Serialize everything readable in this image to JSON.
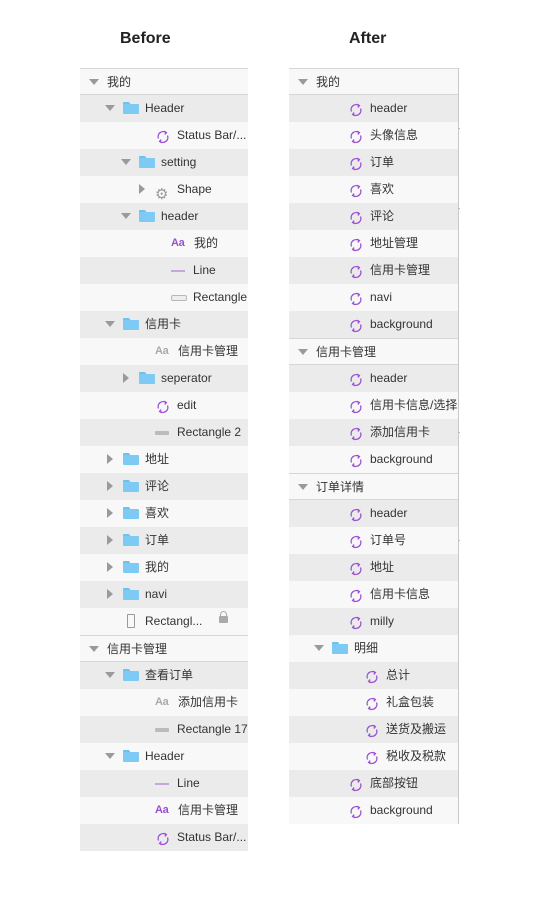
{
  "columns": {
    "before": "Before",
    "after": "After"
  },
  "before": [
    {
      "label": "我的",
      "level": 0,
      "icon": "none",
      "disc": "open",
      "bg": "plain",
      "kind": "group"
    },
    {
      "label": "Header",
      "level": 1,
      "icon": "folder",
      "disc": "open",
      "bg": "alt"
    },
    {
      "label": "Status Bar/...",
      "level": 3,
      "icon": "symbol",
      "bg": "plain"
    },
    {
      "label": "setting",
      "level": 2,
      "icon": "folder",
      "disc": "open",
      "bg": "alt"
    },
    {
      "label": "Shape",
      "level": 3,
      "icon": "gear",
      "disc": "closed",
      "bg": "plain"
    },
    {
      "label": "header",
      "level": 2,
      "icon": "folder",
      "disc": "open",
      "bg": "alt"
    },
    {
      "label": "我的",
      "level": 4,
      "icon": "text",
      "bg": "plain"
    },
    {
      "label": "Line",
      "level": 4,
      "icon": "line",
      "bg": "alt"
    },
    {
      "label": "Rectangle",
      "level": 4,
      "icon": "rect",
      "bg": "plain"
    },
    {
      "label": "信用卡",
      "level": 1,
      "icon": "folder",
      "disc": "open",
      "bg": "alt"
    },
    {
      "label": "信用卡管理",
      "level": 3,
      "icon": "text-grey",
      "bg": "plain"
    },
    {
      "label": "seperator",
      "level": 2,
      "icon": "folder",
      "disc": "closed",
      "bg": "alt"
    },
    {
      "label": "edit",
      "level": 3,
      "icon": "symbol",
      "bg": "plain"
    },
    {
      "label": "Rectangle 2",
      "level": 3,
      "icon": "bar",
      "bg": "alt"
    },
    {
      "label": "地址",
      "level": 1,
      "icon": "folder",
      "disc": "closed",
      "bg": "plain"
    },
    {
      "label": "评论",
      "level": 1,
      "icon": "folder",
      "disc": "closed",
      "bg": "alt"
    },
    {
      "label": "喜欢",
      "level": 1,
      "icon": "folder",
      "disc": "closed",
      "bg": "plain"
    },
    {
      "label": "订单",
      "level": 1,
      "icon": "folder",
      "disc": "closed",
      "bg": "alt"
    },
    {
      "label": "我的",
      "level": 1,
      "icon": "folder",
      "disc": "closed",
      "bg": "plain"
    },
    {
      "label": "navi",
      "level": 1,
      "icon": "folder",
      "disc": "closed",
      "bg": "alt"
    },
    {
      "label": "Rectangl...",
      "level": 1,
      "icon": "phone",
      "bg": "plain",
      "locked": true
    },
    {
      "label": "信用卡管理",
      "level": 0,
      "icon": "none",
      "disc": "open",
      "bg": "plain",
      "kind": "group"
    },
    {
      "label": "查看订单",
      "level": 1,
      "icon": "folder",
      "disc": "open",
      "bg": "alt"
    },
    {
      "label": "添加信用卡",
      "level": 3,
      "icon": "text-grey",
      "bg": "plain"
    },
    {
      "label": "Rectangle 17",
      "level": 3,
      "icon": "bar",
      "bg": "alt"
    },
    {
      "label": "Header",
      "level": 1,
      "icon": "folder",
      "disc": "open",
      "bg": "plain"
    },
    {
      "label": "Line",
      "level": 3,
      "icon": "line",
      "bg": "alt"
    },
    {
      "label": "信用卡管理",
      "level": 3,
      "icon": "text",
      "bg": "plain"
    },
    {
      "label": "Status Bar/...",
      "level": 3,
      "icon": "symbol",
      "bg": "alt"
    }
  ],
  "after": [
    {
      "label": "我的",
      "level": 0,
      "icon": "none",
      "disc": "open",
      "bg": "plain",
      "kind": "group"
    },
    {
      "label": "header",
      "level": 2,
      "icon": "symbol",
      "bg": "alt"
    },
    {
      "label": "头像信息",
      "level": 2,
      "icon": "symbol",
      "bg": "plain"
    },
    {
      "label": "订单",
      "level": 2,
      "icon": "symbol",
      "bg": "alt"
    },
    {
      "label": "喜欢",
      "level": 2,
      "icon": "symbol",
      "bg": "plain"
    },
    {
      "label": "评论",
      "level": 2,
      "icon": "symbol",
      "bg": "alt"
    },
    {
      "label": "地址管理",
      "level": 2,
      "icon": "symbol",
      "bg": "plain"
    },
    {
      "label": "信用卡管理",
      "level": 2,
      "icon": "symbol",
      "bg": "alt"
    },
    {
      "label": "navi",
      "level": 2,
      "icon": "symbol",
      "bg": "plain"
    },
    {
      "label": "background",
      "level": 2,
      "icon": "symbol",
      "bg": "alt"
    },
    {
      "label": "信用卡管理",
      "level": 0,
      "icon": "none",
      "disc": "open",
      "bg": "plain",
      "kind": "group"
    },
    {
      "label": "header",
      "level": 2,
      "icon": "symbol",
      "bg": "alt"
    },
    {
      "label": "信用卡信息/选择",
      "level": 2,
      "icon": "symbol",
      "bg": "plain"
    },
    {
      "label": "添加信用卡",
      "level": 2,
      "icon": "symbol",
      "bg": "alt"
    },
    {
      "label": "background",
      "level": 2,
      "icon": "symbol",
      "bg": "plain"
    },
    {
      "label": "订单详情",
      "level": 0,
      "icon": "none",
      "disc": "open",
      "bg": "plain",
      "kind": "group"
    },
    {
      "label": "header",
      "level": 2,
      "icon": "symbol",
      "bg": "alt"
    },
    {
      "label": "订单号",
      "level": 2,
      "icon": "symbol",
      "bg": "plain"
    },
    {
      "label": "地址",
      "level": 2,
      "icon": "symbol",
      "bg": "alt"
    },
    {
      "label": "信用卡信息",
      "level": 2,
      "icon": "symbol",
      "bg": "plain"
    },
    {
      "label": "milly",
      "level": 2,
      "icon": "symbol",
      "bg": "alt"
    },
    {
      "label": "明细",
      "level": 1,
      "icon": "folder",
      "disc": "open",
      "bg": "plain"
    },
    {
      "label": "总计",
      "level": 3,
      "icon": "symbol",
      "bg": "alt"
    },
    {
      "label": "礼盒包装",
      "level": 3,
      "icon": "symbol",
      "bg": "plain"
    },
    {
      "label": "送货及搬运",
      "level": 3,
      "icon": "symbol",
      "bg": "alt"
    },
    {
      "label": "税收及税款",
      "level": 3,
      "icon": "symbol",
      "bg": "plain"
    },
    {
      "label": "底部按钮",
      "level": 2,
      "icon": "symbol",
      "bg": "alt"
    },
    {
      "label": "background",
      "level": 2,
      "icon": "symbol",
      "bg": "plain"
    }
  ]
}
